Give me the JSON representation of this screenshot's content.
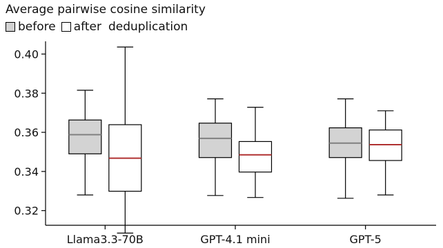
{
  "chart_data": {
    "type": "box",
    "title": "Average pairwise cosine similarity",
    "legend": {
      "placement": "top-left",
      "entries": [
        {
          "label": "before",
          "color": "#d3d3d3"
        },
        {
          "label": "after",
          "color": "#ffffff"
        }
      ],
      "suffix": "deduplication"
    },
    "xlabel": "",
    "ylabel": "",
    "ylim": [
      0.3125,
      0.4065
    ],
    "yticks": [
      "0.32",
      "0.34",
      "0.36",
      "0.38",
      "0.40"
    ],
    "categories": [
      "Llama3.3-70B",
      "GPT-4.1 mini",
      "GPT-5"
    ],
    "series": [
      {
        "name": "before",
        "fill": "#d3d3d3",
        "median_color": "#808080",
        "boxes": [
          {
            "whisker_low": 0.328,
            "q1": 0.349,
            "median": 0.3588,
            "q3": 0.3663,
            "whisker_high": 0.3815
          },
          {
            "whisker_low": 0.3277,
            "q1": 0.3471,
            "median": 0.3569,
            "q3": 0.3647,
            "whisker_high": 0.3771
          },
          {
            "whisker_low": 0.3263,
            "q1": 0.3471,
            "median": 0.3545,
            "q3": 0.3623,
            "whisker_high": 0.3771
          }
        ]
      },
      {
        "name": "after",
        "fill": "#ffffff",
        "median_color": "#b03030",
        "boxes": [
          {
            "whisker_low": 0.3085,
            "q1": 0.3299,
            "median": 0.3468,
            "q3": 0.3639,
            "whisker_high": 0.4036
          },
          {
            "whisker_low": 0.3267,
            "q1": 0.3397,
            "median": 0.3485,
            "q3": 0.3553,
            "whisker_high": 0.3728
          },
          {
            "whisker_low": 0.328,
            "q1": 0.3456,
            "median": 0.3537,
            "q3": 0.3612,
            "whisker_high": 0.371
          }
        ]
      }
    ],
    "grid": false
  }
}
